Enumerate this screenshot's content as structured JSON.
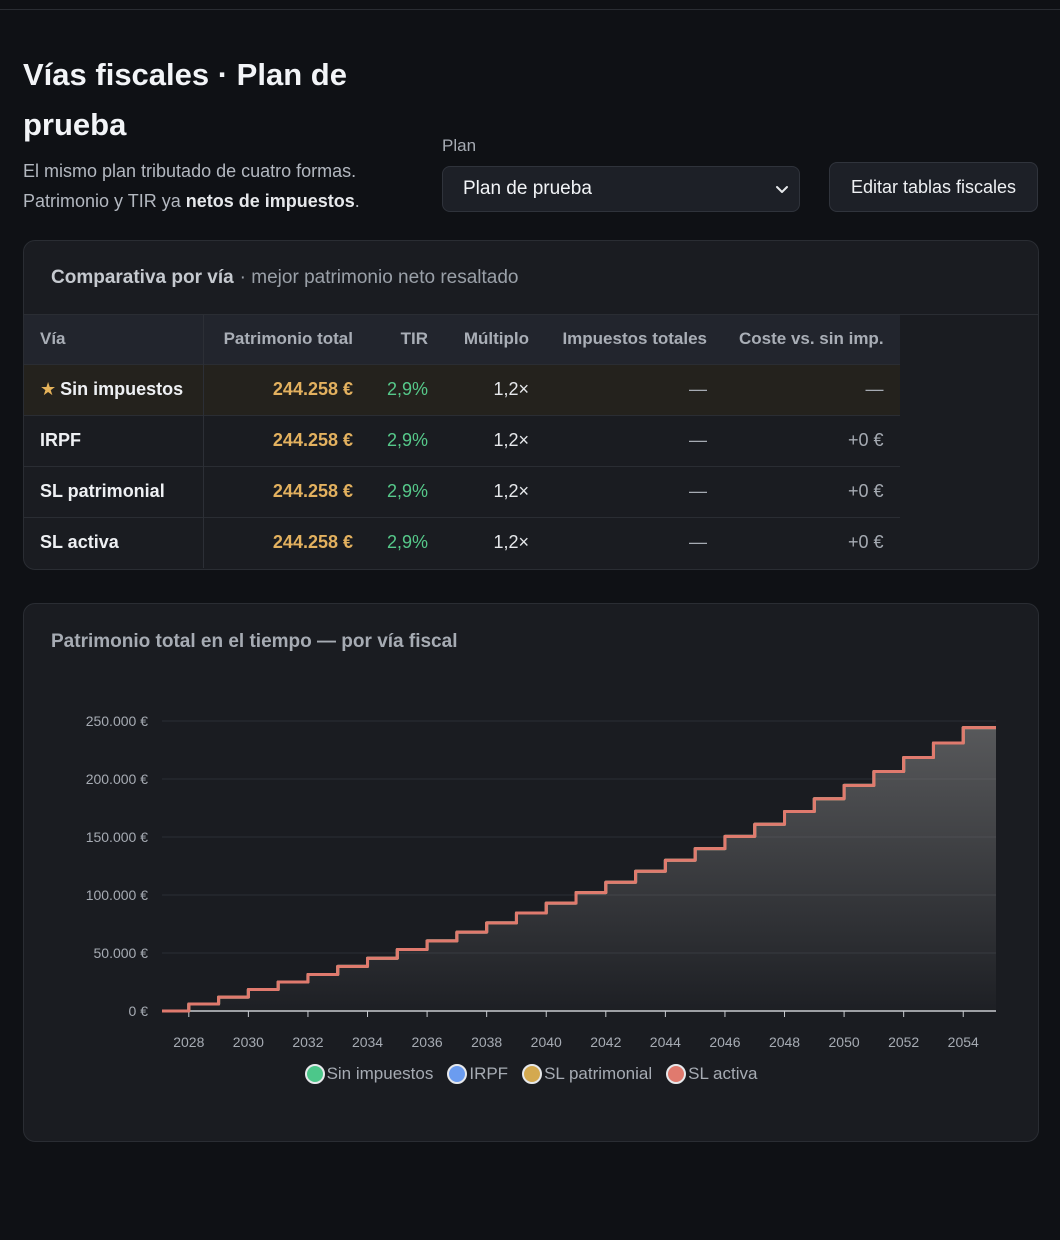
{
  "header": {
    "title": "Vías fiscales · Plan de prueba",
    "subtitle_pre": "El mismo plan tributado de cuatro formas. Patrimonio y TIR ya ",
    "subtitle_bold": "netos de impuestos",
    "subtitle_post": "."
  },
  "plan": {
    "label": "Plan",
    "selected": "Plan de prueba"
  },
  "edit_button": "Editar tablas fiscales",
  "comparison": {
    "title": "Comparativa por vía",
    "subtitle": "· mejor patrimonio neto resaltado",
    "columns": [
      "Vía",
      "Patrimonio total",
      "TIR",
      "Múltiplo",
      "Impuestos totales",
      "Coste vs. sin imp."
    ],
    "rows": [
      {
        "via": "Sin impuestos",
        "patrimonio": "244.258 €",
        "tir": "2,9%",
        "multiplo": "1,2×",
        "impuestos": "—",
        "coste": "—",
        "best": true
      },
      {
        "via": "IRPF",
        "patrimonio": "244.258 €",
        "tir": "2,9%",
        "multiplo": "1,2×",
        "impuestos": "—",
        "coste": "+0 €",
        "best": false
      },
      {
        "via": "SL patrimonial",
        "patrimonio": "244.258 €",
        "tir": "2,9%",
        "multiplo": "1,2×",
        "impuestos": "—",
        "coste": "+0 €",
        "best": false
      },
      {
        "via": "SL activa",
        "patrimonio": "244.258 €",
        "tir": "2,9%",
        "multiplo": "1,2×",
        "impuestos": "—",
        "coste": "+0 €",
        "best": false
      }
    ],
    "star_icon": "star-icon"
  },
  "chart_data": {
    "type": "line",
    "title": "Patrimonio total en el tiempo — por vía fiscal",
    "xlabel": "",
    "ylabel": "",
    "x_ticks": [
      "2028",
      "2030",
      "2032",
      "2034",
      "2036",
      "2038",
      "2040",
      "2042",
      "2044",
      "2046",
      "2048",
      "2050",
      "2052",
      "2054"
    ],
    "y_ticks": [
      "0 €",
      "50.000 €",
      "100.000 €",
      "150.000 €",
      "200.000 €",
      "250.000 €"
    ],
    "xlim": [
      2027.1,
      2055.1
    ],
    "ylim": [
      0,
      250000
    ],
    "grid": true,
    "legend": "bottom",
    "step": true,
    "x": [
      2027.1,
      2028,
      2029,
      2030,
      2031,
      2032,
      2033,
      2034,
      2035,
      2036,
      2037,
      2038,
      2039,
      2040,
      2041,
      2042,
      2043,
      2044,
      2045,
      2046,
      2047,
      2048,
      2049,
      2050,
      2051,
      2052,
      2053,
      2054,
      2055.1
    ],
    "series": [
      {
        "name": "Sin impuestos",
        "color": "#4cc78a",
        "values": [
          0,
          6000,
          12000,
          18500,
          25000,
          31500,
          38500,
          45500,
          53000,
          60500,
          68000,
          76000,
          84500,
          93000,
          102000,
          111000,
          120500,
          130000,
          140000,
          150500,
          161000,
          172000,
          183000,
          194500,
          206500,
          218500,
          231000,
          244258,
          244258
        ]
      },
      {
        "name": "IRPF",
        "color": "#6b9cf0",
        "values": [
          0,
          6000,
          12000,
          18500,
          25000,
          31500,
          38500,
          45500,
          53000,
          60500,
          68000,
          76000,
          84500,
          93000,
          102000,
          111000,
          120500,
          130000,
          140000,
          150500,
          161000,
          172000,
          183000,
          194500,
          206500,
          218500,
          231000,
          244258,
          244258
        ]
      },
      {
        "name": "SL patrimonial",
        "color": "#d4a94f",
        "values": [
          0,
          6000,
          12000,
          18500,
          25000,
          31500,
          38500,
          45500,
          53000,
          60500,
          68000,
          76000,
          84500,
          93000,
          102000,
          111000,
          120500,
          130000,
          140000,
          150500,
          161000,
          172000,
          183000,
          194500,
          206500,
          218500,
          231000,
          244258,
          244258
        ]
      },
      {
        "name": "SL activa",
        "color": "#e07a6e",
        "values": [
          0,
          6000,
          12000,
          18500,
          25000,
          31500,
          38500,
          45500,
          53000,
          60500,
          68000,
          76000,
          84500,
          93000,
          102000,
          111000,
          120500,
          130000,
          140000,
          150500,
          161000,
          172000,
          183000,
          194500,
          206500,
          218500,
          231000,
          244258,
          244258
        ]
      }
    ]
  }
}
